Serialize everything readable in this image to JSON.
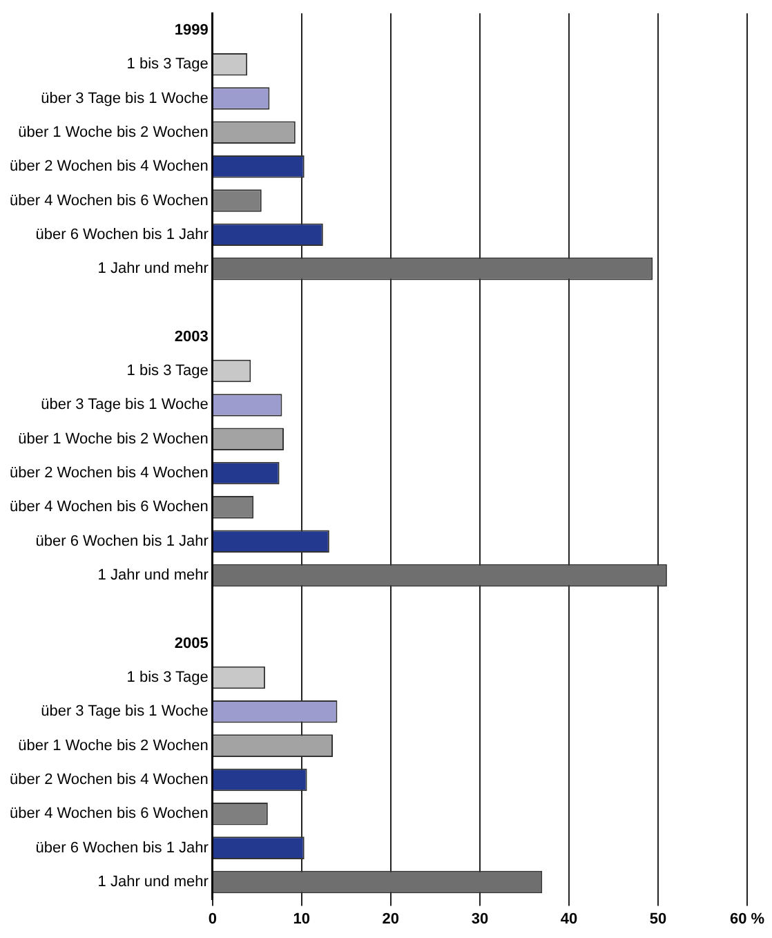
{
  "chart_data": {
    "type": "bar",
    "orientation": "horizontal",
    "categories": [
      "1999",
      "1 bis 3 Tage",
      "über 3 Tage bis 1 Woche",
      "über 1 Woche bis 2 Wochen",
      "über 2 Wochen bis 4 Wochen",
      "über 4 Wochen bis 6 Wochen",
      "über 6 Wochen bis 1 Jahr",
      "1 Jahr und mehr",
      null,
      "2003",
      "1 bis 3 Tage",
      "über 3 Tage bis 1 Woche",
      "über 1 Woche bis 2 Wochen",
      "über 2 Wochen bis 4 Wochen",
      "über 4 Wochen bis 6 Wochen",
      "über 6 Wochen bis 1 Jahr",
      "1 Jahr und mehr",
      null,
      "2005",
      "1 bis 3 Tage",
      "über 3 Tage bis 1 Woche",
      "über 1 Woche bis 2 Wochen",
      "über 2 Wochen bis 4 Wochen",
      "über 4 Wochen bis 6 Wochen",
      "über 6 Wochen bis 1 Jahr",
      "1 Jahr und mehr"
    ],
    "values": [
      null,
      3.9,
      6.4,
      9.3,
      10.3,
      5.5,
      12.4,
      49.4,
      null,
      null,
      4.3,
      7.8,
      8.0,
      7.5,
      4.6,
      13.1,
      51.0,
      null,
      null,
      5.9,
      14.0,
      13.5,
      10.6,
      6.2,
      10.3,
      37.0
    ],
    "colors": [
      null,
      "#c8c8c8",
      "#9c9ccf",
      "#a3a3a3",
      "#22398f",
      "#7f7f7f",
      "#22398f",
      "#6f6f6f",
      null,
      null,
      "#c8c8c8",
      "#9c9ccf",
      "#a3a3a3",
      "#22398f",
      "#7f7f7f",
      "#22398f",
      "#6f6f6f",
      null,
      null,
      "#c8c8c8",
      "#9c9ccf",
      "#a3a3a3",
      "#22398f",
      "#7f7f7f",
      "#22398f",
      "#6f6f6f"
    ],
    "xlim": [
      0,
      60
    ],
    "xticks": [
      0,
      10,
      20,
      30,
      40,
      50,
      {
        "value": 60,
        "label": "60 %"
      }
    ],
    "grid": "x",
    "legend": false
  }
}
